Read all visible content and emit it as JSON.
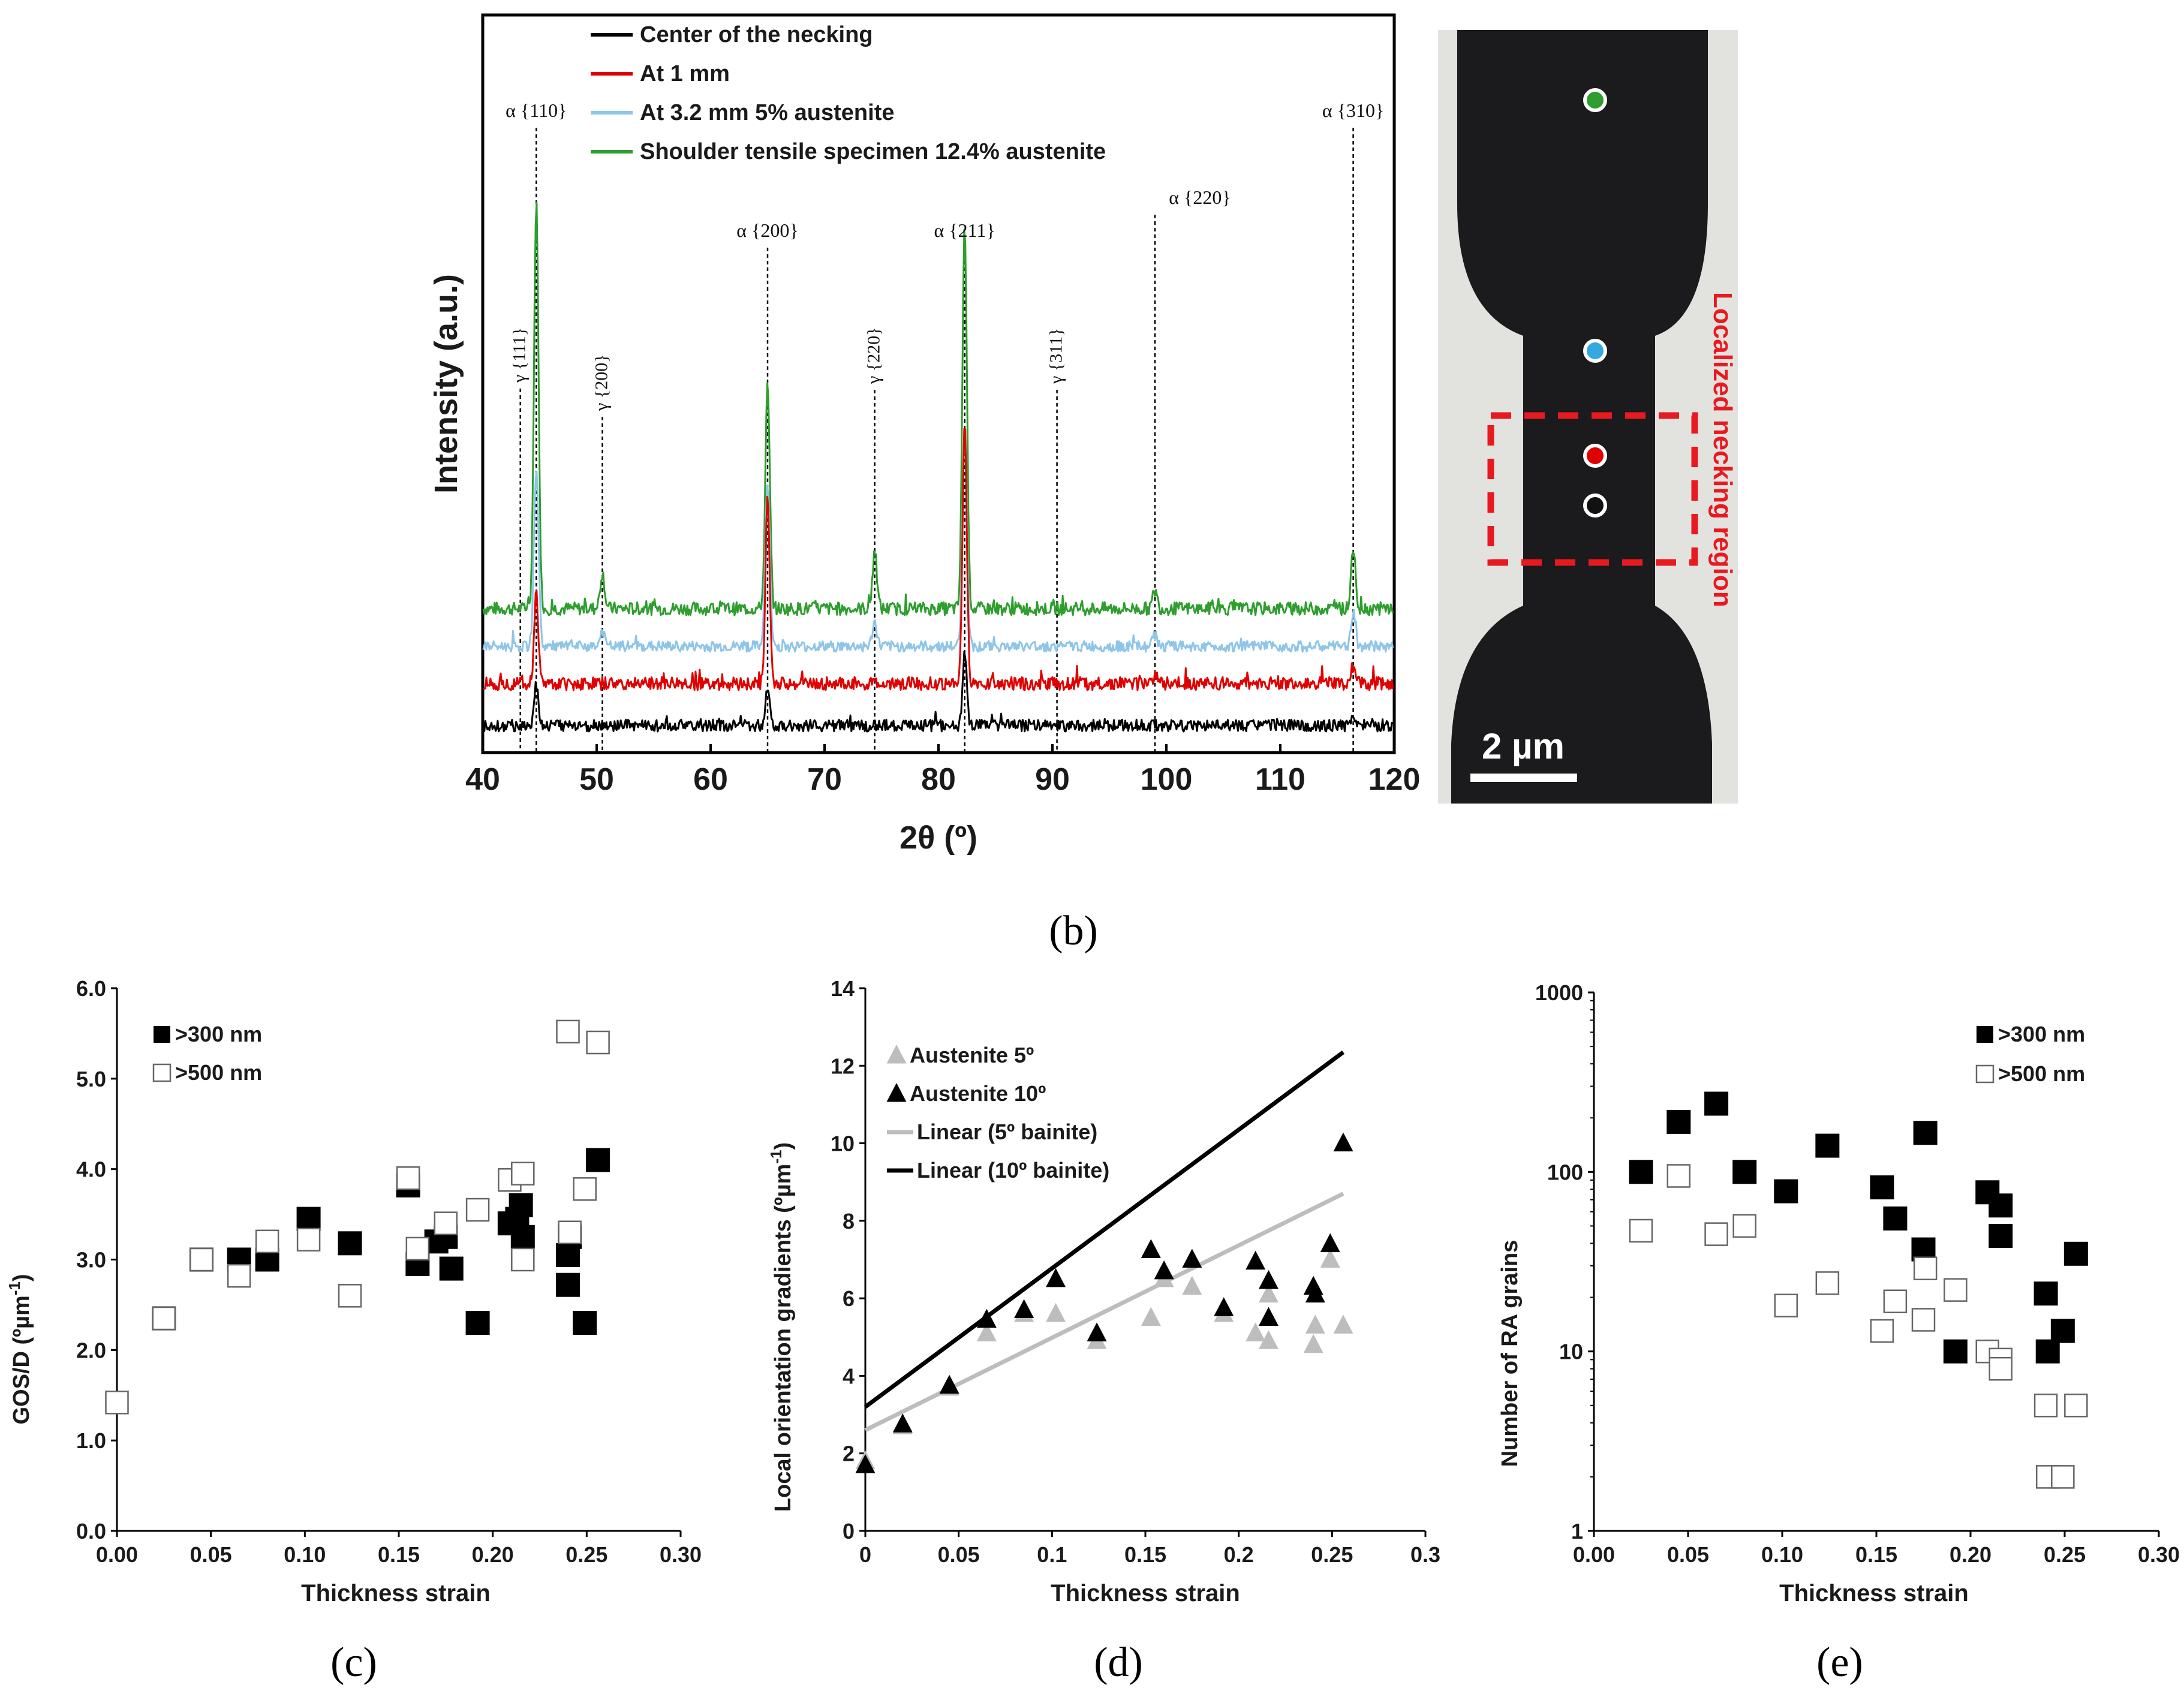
{
  "chart_data": [
    {
      "id": "xrd",
      "type": "line",
      "xlabel": "2θ (º)",
      "ylabel": "Intensity (a.u.)",
      "xlim": [
        40,
        120
      ],
      "xticks": [
        40,
        50,
        60,
        70,
        80,
        90,
        100,
        110,
        120
      ],
      "legend": [
        {
          "label": "Center of the necking",
          "color": "#000000"
        },
        {
          "label": "At 1 mm",
          "color": "#e00000"
        },
        {
          "label": "At 3.2 mm 5% austenite",
          "color": "#8ec5e8"
        },
        {
          "label": "Shoulder tensile specimen 12.4% austenite",
          "color": "#2e9e2e"
        }
      ],
      "peaks_alpha": [
        {
          "label": "α {110}",
          "x": 44.7
        },
        {
          "label": "α {200}",
          "x": 65.0
        },
        {
          "label": "α {211}",
          "x": 82.3
        },
        {
          "label": "α {220}",
          "x": 99.0
        },
        {
          "label": "α {310}",
          "x": 116.4
        }
      ],
      "peaks_gamma": [
        {
          "label": "γ {111}",
          "x": 43.3
        },
        {
          "label": "γ {200}",
          "x": 50.5
        },
        {
          "label": "γ {220}",
          "x": 74.4
        },
        {
          "label": "γ {311}",
          "x": 90.4
        }
      ]
    },
    {
      "id": "gos",
      "type": "scatter",
      "xlabel": "Thickness strain",
      "ylabel": "GOS/D (ºµm",
      "ylabel_sup": "-1",
      "ylabel_end": ")",
      "xlim": [
        0,
        0.3
      ],
      "ylim": [
        0,
        6
      ],
      "xticks": [
        "0.00",
        "0.05",
        "0.10",
        "0.15",
        "0.20",
        "0.25",
        "0.30"
      ],
      "yticks": [
        "0.0",
        "1.0",
        "2.0",
        "3.0",
        "4.0",
        "5.0",
        "6.0"
      ],
      "legend_position": "top-left",
      "series": [
        {
          "name": ">300 nm",
          "marker": "filled-square",
          "x": [
            0.025,
            0.045,
            0.065,
            0.08,
            0.102,
            0.124,
            0.155,
            0.16,
            0.17,
            0.175,
            0.178,
            0.192,
            0.209,
            0.213,
            0.215,
            0.216,
            0.24,
            0.24,
            0.241,
            0.249,
            0.256
          ],
          "y": [
            2.35,
            3.0,
            3.0,
            3.0,
            3.45,
            3.18,
            3.82,
            2.95,
            3.2,
            3.25,
            2.9,
            2.3,
            3.4,
            3.45,
            3.6,
            3.25,
            3.05,
            2.72,
            3.25,
            2.3,
            4.1
          ]
        },
        {
          "name": ">500 nm",
          "marker": "open-square",
          "x": [
            0.0,
            0.025,
            0.045,
            0.065,
            0.08,
            0.102,
            0.124,
            0.155,
            0.16,
            0.175,
            0.192,
            0.209,
            0.216,
            0.216,
            0.24,
            0.241,
            0.249,
            0.256
          ],
          "y": [
            1.42,
            2.35,
            3.0,
            2.82,
            3.2,
            3.22,
            2.6,
            3.9,
            3.12,
            3.4,
            3.55,
            3.88,
            3.95,
            3.0,
            5.52,
            3.3,
            3.78,
            5.4
          ]
        }
      ]
    },
    {
      "id": "log",
      "type": "scatter",
      "xlabel": "Thickness strain",
      "ylabel": "Local orientation gradients (ºµm",
      "ylabel_sup": "-1",
      "ylabel_end": ")",
      "xlim": [
        0,
        0.3
      ],
      "ylim": [
        0,
        14
      ],
      "xticks": [
        "0",
        "0.05",
        "0.1",
        "0.15",
        "0.2",
        "0.25",
        "0.3"
      ],
      "yticks": [
        "0",
        "2",
        "4",
        "6",
        "8",
        "10",
        "12",
        "14"
      ],
      "legend_position": "top-left",
      "series": [
        {
          "name": "Austenite 5º",
          "marker": "gray-triangle",
          "x": [
            0.0,
            0.02,
            0.045,
            0.065,
            0.085,
            0.102,
            0.124,
            0.153,
            0.16,
            0.175,
            0.192,
            0.209,
            0.216,
            0.216,
            0.24,
            0.241,
            0.249,
            0.256
          ],
          "y": [
            1.8,
            2.7,
            3.7,
            5.1,
            5.6,
            5.6,
            4.9,
            5.5,
            6.5,
            6.3,
            5.6,
            5.1,
            4.9,
            6.1,
            4.8,
            5.3,
            7.0,
            5.3
          ]
        },
        {
          "name": "Austenite 10º",
          "marker": "black-triangle",
          "x": [
            0.0,
            0.02,
            0.045,
            0.065,
            0.085,
            0.102,
            0.124,
            0.153,
            0.16,
            0.175,
            0.192,
            0.209,
            0.216,
            0.216,
            0.24,
            0.241,
            0.249,
            0.256
          ],
          "y": [
            1.7,
            2.75,
            3.75,
            5.45,
            5.7,
            6.5,
            5.1,
            7.25,
            6.7,
            7.0,
            5.75,
            6.95,
            6.45,
            5.5,
            6.3,
            6.1,
            7.4,
            10.0
          ]
        },
        {
          "name": "Linear (5º bainite)",
          "type": "line",
          "color": "#bdbdbd",
          "x": [
            0,
            0.256
          ],
          "y": [
            2.6,
            8.7
          ]
        },
        {
          "name": "Linear (10º bainite)",
          "type": "line",
          "color": "#000000",
          "x": [
            0,
            0.256
          ],
          "y": [
            3.2,
            12.35
          ]
        }
      ]
    },
    {
      "id": "ra",
      "type": "scatter",
      "xlabel": "Thickness strain",
      "ylabel": "Number of RA grains",
      "yscale": "log",
      "xlim": [
        0,
        0.3
      ],
      "ylim": [
        1,
        1000
      ],
      "xticks": [
        "0.00",
        "0.05",
        "0.10",
        "0.15",
        "0.20",
        "0.25",
        "0.30"
      ],
      "yticks": [
        "1",
        "10",
        "100",
        "1000"
      ],
      "legend_position": "top-right",
      "series": [
        {
          "name": ">300 nm",
          "marker": "filled-square",
          "x": [
            0.025,
            0.045,
            0.065,
            0.08,
            0.102,
            0.124,
            0.153,
            0.16,
            0.175,
            0.176,
            0.192,
            0.209,
            0.216,
            0.216,
            0.24,
            0.241,
            0.249,
            0.256
          ],
          "y": [
            100,
            190,
            240,
            100,
            78,
            140,
            82,
            55,
            37,
            165,
            10,
            77,
            44,
            65,
            21,
            10,
            13,
            35
          ]
        },
        {
          "name": ">500 nm",
          "marker": "open-square",
          "x": [
            0.025,
            0.045,
            0.065,
            0.08,
            0.102,
            0.124,
            0.153,
            0.16,
            0.175,
            0.176,
            0.192,
            0.209,
            0.216,
            0.216,
            0.24,
            0.241,
            0.249,
            0.256
          ],
          "y": [
            47,
            95,
            45,
            50,
            18,
            24,
            13,
            19,
            15,
            29,
            22,
            10,
            9,
            8,
            5,
            2,
            2,
            5
          ]
        }
      ]
    }
  ],
  "photo": {
    "necking_label": "Localized necking region",
    "scale_label": "2 µm",
    "dot_colors": [
      "#2e9e2e",
      "#35a8e0",
      "#e00000",
      "#111111"
    ]
  },
  "captions": {
    "b": "(b)",
    "c": "(c)",
    "d": "(d)",
    "e": "(e)"
  }
}
